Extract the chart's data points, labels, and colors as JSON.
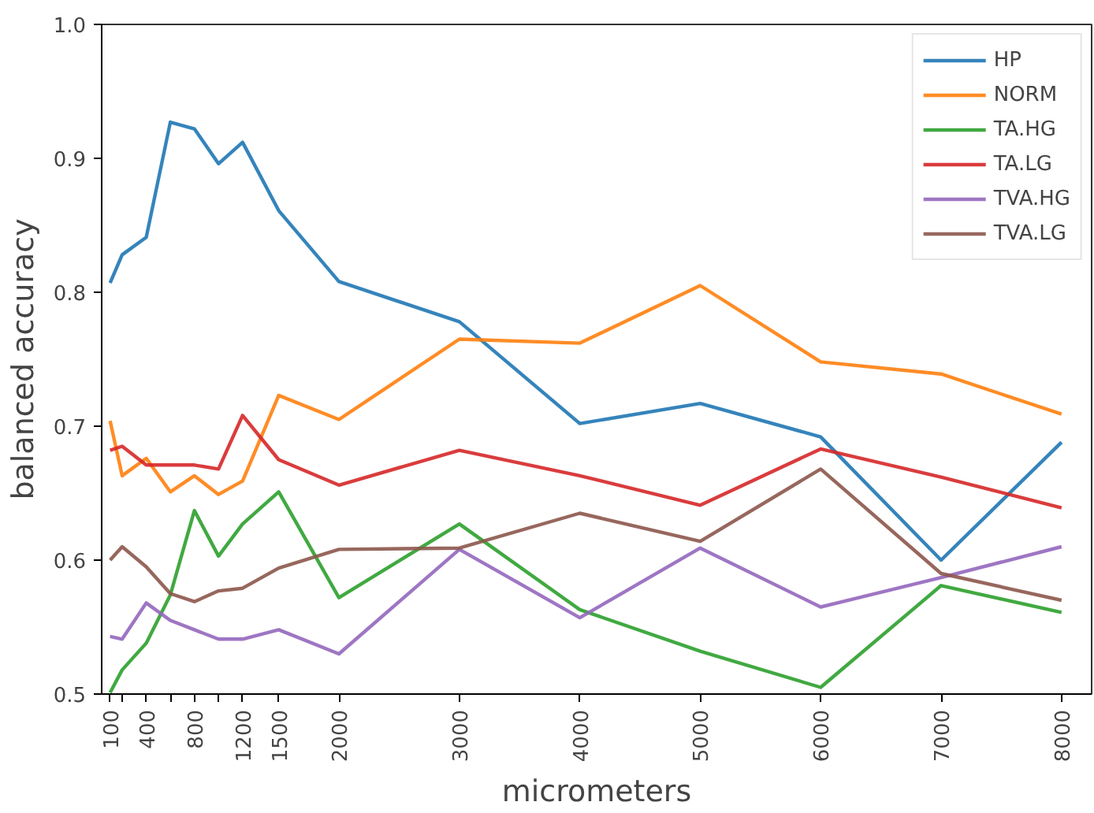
{
  "chart_data": {
    "type": "line",
    "xlabel": "micrometers",
    "ylabel": "balanced accuracy",
    "x": [
      100,
      200,
      400,
      600,
      800,
      1000,
      1200,
      1500,
      2000,
      3000,
      4000,
      5000,
      6000,
      7000,
      8000
    ],
    "xlim": [
      30,
      8250
    ],
    "ylim": [
      0.5,
      1.0
    ],
    "xticks": [
      100,
      {
        "value": 200,
        "label": null
      },
      400,
      {
        "value": 600,
        "label": null
      },
      800,
      {
        "value": 1000,
        "label": null
      },
      1200,
      1500,
      2000,
      3000,
      4000,
      5000,
      6000,
      7000,
      8000
    ],
    "yticks": [
      {
        "value": 0.5,
        "label": "0.5"
      },
      {
        "value": 0.6,
        "label": "0.6"
      },
      {
        "value": 0.7,
        "label": "0.7"
      },
      {
        "value": 0.8,
        "label": "0.8"
      },
      {
        "value": 0.9,
        "label": "0.9"
      },
      {
        "value": 1.0,
        "label": "1.0"
      }
    ],
    "grid": false,
    "legend": "top right",
    "marker": "none",
    "line_style": "solid",
    "series": [
      {
        "name": "HP",
        "color": "#1f77b4",
        "values": [
          0.807,
          0.828,
          0.841,
          0.927,
          0.922,
          0.896,
          0.912,
          0.861,
          0.808,
          0.778,
          0.702,
          0.717,
          0.692,
          0.6,
          0.688
        ]
      },
      {
        "name": "NORM",
        "color": "#ff7f0e",
        "values": [
          0.704,
          0.663,
          0.676,
          0.651,
          0.663,
          0.649,
          0.659,
          0.723,
          0.705,
          0.765,
          0.762,
          0.805,
          0.748,
          0.739,
          0.709
        ]
      },
      {
        "name": "TA.HG",
        "color": "#2ca02c",
        "values": [
          0.501,
          0.518,
          0.538,
          0.574,
          0.637,
          0.603,
          0.627,
          0.651,
          0.572,
          0.627,
          0.563,
          0.532,
          0.505,
          0.581,
          0.561
        ]
      },
      {
        "name": "TA.LG",
        "color": "#d62728",
        "values": [
          0.682,
          0.685,
          0.671,
          0.671,
          0.671,
          0.668,
          0.708,
          0.675,
          0.656,
          0.682,
          0.663,
          0.641,
          0.683,
          0.662,
          0.639
        ]
      },
      {
        "name": "TVA.HG",
        "color": "#9467bd",
        "values": [
          0.543,
          0.541,
          0.568,
          0.555,
          0.548,
          0.541,
          0.541,
          0.548,
          0.53,
          0.608,
          0.557,
          0.609,
          0.565,
          0.587,
          0.61
        ]
      },
      {
        "name": "TVA.LG",
        "color": "#8c564b",
        "values": [
          0.6,
          0.61,
          0.595,
          0.575,
          0.569,
          0.577,
          0.579,
          0.594,
          0.608,
          0.609,
          0.635,
          0.614,
          0.668,
          0.59,
          0.57
        ]
      }
    ]
  }
}
